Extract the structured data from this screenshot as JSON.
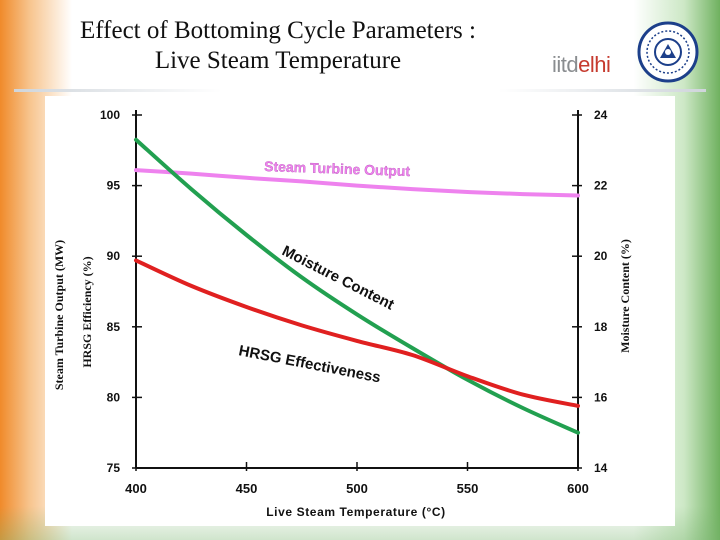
{
  "slide": {
    "title_line1": "Effect of Bottoming Cycle Parameters :",
    "title_line2": "Live Steam Temperature",
    "logo_part1": "iitd",
    "logo_part2": "elhi"
  },
  "colors": {
    "turbine": "#ee82ee",
    "moisture": "#22a050",
    "hrsg": "#e02020",
    "axis": "#111111"
  },
  "chart_data": {
    "type": "line",
    "xlabel": "Live Steam Temperature (°C)",
    "ylabel_left_line1": "Steam Turbine Output (MW)",
    "ylabel_left_line2": "HRSG Efficiency (%)",
    "ylabel_right": "Moisture Content (%)",
    "xlim": [
      400,
      600
    ],
    "ylim_left": [
      75,
      100
    ],
    "ylim_right": [
      14,
      24
    ],
    "x_ticks": [
      "400",
      "450",
      "500",
      "550",
      "600"
    ],
    "y_left_ticks": [
      "75",
      "80",
      "85",
      "90",
      "95",
      "100"
    ],
    "y_right_ticks": [
      "14",
      "16",
      "18",
      "20",
      "22",
      "24"
    ],
    "grid": false,
    "series": [
      {
        "name": "Steam Turbine Output",
        "axis": "left",
        "x": [
          400,
          425,
          450,
          475,
          500,
          525,
          550,
          575,
          600
        ],
        "y": [
          96.1,
          95.85,
          95.55,
          95.3,
          95.0,
          94.75,
          94.55,
          94.4,
          94.3
        ]
      },
      {
        "name": "Moisture Content",
        "axis": "right",
        "x": [
          400,
          425,
          450,
          475,
          500,
          525,
          550,
          575,
          600
        ],
        "y": [
          23.3,
          21.9,
          20.6,
          19.4,
          18.35,
          17.4,
          16.5,
          15.7,
          15.0
        ]
      },
      {
        "name": "HRSG Effectiveness",
        "axis": "left",
        "x": [
          400,
          425,
          450,
          475,
          500,
          525,
          550,
          575,
          600
        ],
        "y": [
          89.7,
          87.9,
          86.4,
          85.1,
          84.0,
          83.0,
          81.5,
          80.2,
          79.4
        ]
      }
    ],
    "labels": {
      "turbine": "Steam Turbine Output",
      "moisture": "Moisture Content",
      "hrsg": "HRSG Effectiveness"
    }
  }
}
